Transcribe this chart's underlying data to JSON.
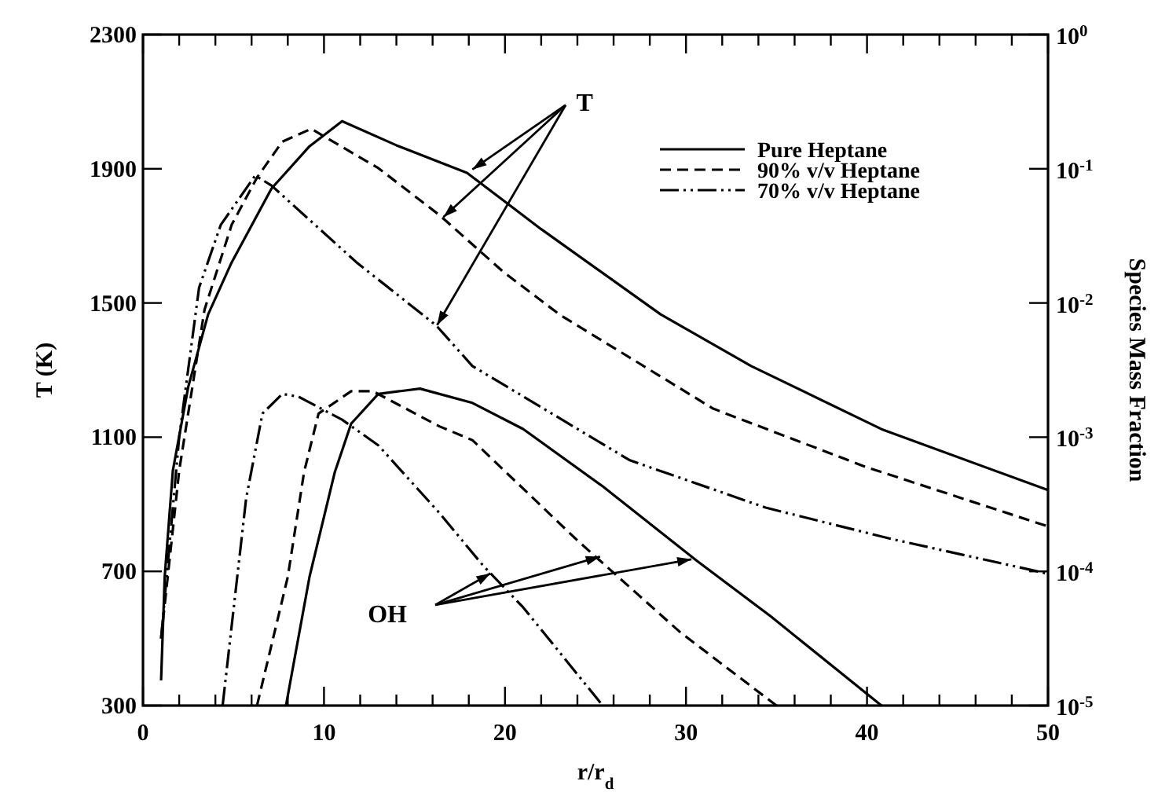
{
  "chart_data": {
    "type": "line",
    "xlabel": "r/r$_{d}$",
    "ylabel": "T (K)",
    "y2label": "Species Mass Fraction",
    "annotations": [
      {
        "text": "T",
        "x": 18.2,
        "y": 1898
      },
      {
        "text": "OH",
        "x": 19.2,
        "y": 694
      }
    ],
    "xlim": [
      0,
      50
    ],
    "xticks": [
      0,
      {
        "value": 2,
        "label": null
      },
      {
        "value": 4,
        "label": null
      },
      {
        "value": 6,
        "label": null
      },
      {
        "value": 8,
        "label": null
      },
      10,
      {
        "value": 12,
        "label": null
      },
      {
        "value": 14,
        "label": null
      },
      {
        "value": 16,
        "label": null
      },
      {
        "value": 18,
        "label": null
      },
      20,
      {
        "value": 22,
        "label": null
      },
      {
        "value": 24,
        "label": null
      },
      {
        "value": 26,
        "label": null
      },
      {
        "value": 28,
        "label": null
      },
      30,
      {
        "value": 32,
        "label": null
      },
      {
        "value": 34,
        "label": null
      },
      {
        "value": 36,
        "label": null
      },
      {
        "value": 38,
        "label": null
      },
      40,
      {
        "value": 42,
        "label": null
      },
      {
        "value": 44,
        "label": null
      },
      {
        "value": 46,
        "label": null
      },
      {
        "value": 48,
        "label": null
      },
      50
    ],
    "ylim": [
      300,
      2300
    ],
    "yticks": [
      300,
      700,
      1100,
      1500,
      1900,
      2300
    ],
    "y2lim": [
      1e-05,
      1
    ],
    "y2ticks": [
      {
        "value": 1e-05,
        "label": "10$^{-5}$"
      },
      {
        "value": 0.0001,
        "label": "10$^{-4}$"
      },
      {
        "value": 0.001,
        "label": "10$^{-3}$"
      },
      {
        "value": 0.01,
        "label": "10$^{-2}$"
      },
      {
        "value": 0.1,
        "label": "10$^{-1}$"
      },
      {
        "value": 1,
        "label": "10$^{0}$"
      }
    ],
    "log": "y2",
    "grid": false,
    "legend": "top right",
    "marker": "none",
    "series": [
      {
        "name": "Pure Heptane",
        "color": "#000000",
        "line_style": "solid",
        "x": [
          1,
          1.2,
          1.65,
          2.5,
          3.6,
          4.9,
          7.1,
          9.2,
          11,
          14,
          17.9,
          22,
          28.6,
          33.6,
          40.8,
          50
        ],
        "values": [
          375,
          684,
          1000,
          1250,
          1466,
          1621,
          1841,
          1967,
          2042,
          1970,
          1888,
          1720,
          1466,
          1312,
          1124,
          942
        ]
      },
      {
        "name": "90% v/v Heptane",
        "color": "#000000",
        "line_style": "dashed",
        "x": [
          1,
          2,
          3.4,
          4.9,
          6.3,
          7.7,
          9.3,
          13,
          16.4,
          19.9,
          23,
          31.5,
          39.9,
          50
        ],
        "values": [
          500,
          1000,
          1480,
          1733,
          1874,
          1981,
          2019,
          1902,
          1761,
          1593,
          1466,
          1185,
          1012,
          834
        ]
      },
      {
        "name": "70% v/v Heptane",
        "color": "#000000",
        "line_style": "dotted",
        "x": [
          1,
          2,
          3.1,
          4.3,
          6.2,
          7.1,
          11.8,
          16.2,
          18.2,
          26.9,
          34.4,
          41.4,
          50
        ],
        "values": [
          500,
          1100,
          1546,
          1733,
          1880,
          1850,
          1621,
          1433,
          1312,
          1031,
          890,
          796,
          693
        ]
      },
      {
        "color": "#000000",
        "line_style": "solid",
        "axis": "y2",
        "x": [
          7.9,
          9.2,
          10.6,
          11.5,
          13,
          15.3,
          18.2,
          21,
          25.4,
          30.6,
          34.7,
          40.8
        ],
        "values": [
          1e-05,
          9.1e-05,
          0.00055,
          0.00126,
          0.0021,
          0.0023,
          0.0018,
          0.00115,
          0.00043,
          0.00012,
          4.6e-05,
          1e-05
        ]
      },
      {
        "color": "#000000",
        "line_style": "dashed",
        "axis": "y2",
        "x": [
          6.3,
          8,
          8.9,
          9.7,
          11.5,
          12.7,
          16.4,
          18.2,
          24,
          29.7,
          35
        ],
        "values": [
          1e-05,
          9.1e-05,
          0.00055,
          0.0015,
          0.0022,
          0.0022,
          0.0012,
          0.00095,
          0.00017,
          3.5e-05,
          1e-05
        ]
      },
      {
        "color": "#000000",
        "line_style": "dotted",
        "axis": "y2",
        "x": [
          4.4,
          5.7,
          6.6,
          7.7,
          8.6,
          11,
          13,
          16.4,
          18.8,
          21,
          25.4
        ],
        "values": [
          1e-05,
          0.00035,
          0.0015,
          0.0021,
          0.002,
          0.00135,
          0.00087,
          0.00027,
          0.00011,
          5.4e-05,
          1e-05
        ]
      }
    ]
  }
}
